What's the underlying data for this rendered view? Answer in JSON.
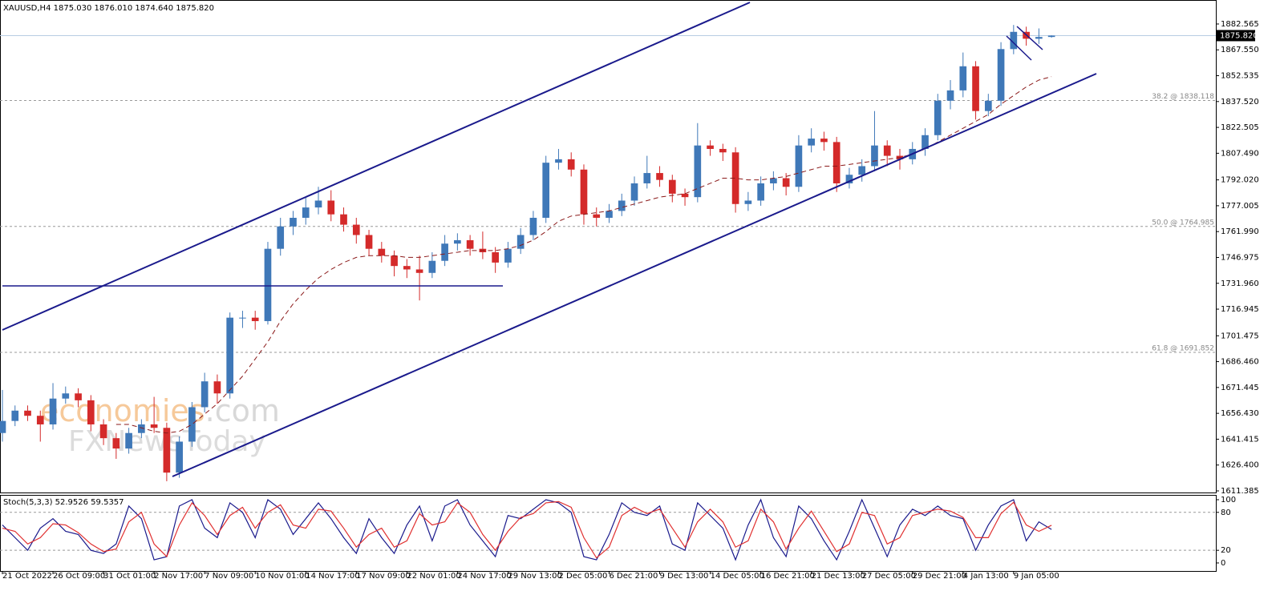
{
  "watermark": {
    "brand": "economies",
    "domain": ".com",
    "source": "FXNewsToday"
  },
  "chart_data": [
    {
      "type": "candlestick",
      "title": "XAUUSD,H4  1875.030 1876.010 1874.640 1875.820",
      "up_color": "#3f78b8",
      "down_color": "#d42a2a",
      "open": [
        1645,
        1652,
        1658,
        1655,
        1650,
        1665,
        1668,
        1664,
        1650,
        1642,
        1636,
        1645,
        1650,
        1648,
        1622,
        1640,
        1660,
        1675,
        1668,
        1712,
        1712,
        1710,
        1752,
        1765,
        1770,
        1776,
        1780,
        1772,
        1766,
        1760,
        1752,
        1748,
        1742,
        1740,
        1738,
        1745,
        1755,
        1757,
        1752,
        1750,
        1744,
        1752,
        1760,
        1770,
        1802,
        1804,
        1798,
        1772,
        1770,
        1774,
        1780,
        1790,
        1796,
        1792,
        1784,
        1782,
        1812,
        1810,
        1808,
        1778,
        1780,
        1790,
        1793,
        1788,
        1812,
        1816,
        1814,
        1790,
        1795,
        1800,
        1812,
        1806,
        1804,
        1810,
        1818,
        1838,
        1844,
        1858,
        1832,
        1838,
        1868,
        1878,
        1874,
        1875.03
      ],
      "high": [
        1670,
        1661,
        1661,
        1658,
        1674,
        1672,
        1671,
        1667,
        1653,
        1645,
        1648,
        1653,
        1666,
        1651,
        1643,
        1663,
        1680,
        1679,
        1715,
        1716,
        1716,
        1756,
        1770,
        1774,
        1782,
        1788,
        1786,
        1776,
        1770,
        1763,
        1756,
        1751,
        1746,
        1748,
        1750,
        1760,
        1761,
        1760,
        1762,
        1753,
        1756,
        1764,
        1774,
        1806,
        1810,
        1808,
        1801,
        1776,
        1778,
        1784,
        1794,
        1806,
        1800,
        1795,
        1787,
        1825,
        1815,
        1813,
        1811,
        1785,
        1794,
        1797,
        1796,
        1818,
        1822,
        1820,
        1817,
        1799,
        1804,
        1832,
        1815,
        1810,
        1814,
        1822,
        1842,
        1850,
        1866,
        1861,
        1842,
        1872,
        1882,
        1881,
        1880,
        1876.01
      ],
      "low": [
        1640,
        1649,
        1652,
        1640,
        1647,
        1662,
        1660,
        1646,
        1638,
        1630,
        1633,
        1642,
        1645,
        1617,
        1619,
        1637,
        1657,
        1662,
        1665,
        1706,
        1705,
        1708,
        1748,
        1760,
        1766,
        1772,
        1768,
        1762,
        1755,
        1748,
        1744,
        1736,
        1735,
        1722,
        1735,
        1742,
        1751,
        1748,
        1746,
        1738,
        1741,
        1749,
        1757,
        1767,
        1798,
        1794,
        1766,
        1765,
        1767,
        1771,
        1777,
        1787,
        1788,
        1779,
        1777,
        1779,
        1806,
        1803,
        1773,
        1774,
        1777,
        1786,
        1783,
        1785,
        1808,
        1809,
        1785,
        1787,
        1791,
        1797,
        1800,
        1798,
        1801,
        1806,
        1815,
        1833,
        1840,
        1827,
        1829,
        1835,
        1865,
        1870,
        1871,
        1874.64
      ],
      "close": [
        1652,
        1658,
        1655,
        1650,
        1665,
        1668,
        1664,
        1650,
        1642,
        1636,
        1645,
        1650,
        1648,
        1622,
        1640,
        1660,
        1675,
        1668,
        1712,
        1712,
        1710,
        1752,
        1765,
        1770,
        1776,
        1780,
        1772,
        1766,
        1760,
        1752,
        1748,
        1742,
        1740,
        1738,
        1745,
        1755,
        1757,
        1752,
        1750,
        1744,
        1752,
        1760,
        1770,
        1802,
        1804,
        1798,
        1772,
        1770,
        1774,
        1780,
        1790,
        1796,
        1792,
        1784,
        1782,
        1812,
        1810,
        1808,
        1778,
        1780,
        1790,
        1793,
        1788,
        1812,
        1816,
        1814,
        1790,
        1795,
        1800,
        1812,
        1806,
        1804,
        1810,
        1818,
        1838,
        1844,
        1858,
        1832,
        1838,
        1868,
        1878,
        1874,
        1875.03,
        1875.82
      ],
      "ma": {
        "color": "#8b1a1a",
        "values": [
          null,
          null,
          null,
          null,
          null,
          null,
          null,
          null,
          null,
          1650,
          1650,
          1648,
          1646,
          1645,
          1646,
          1650,
          1656,
          1662,
          1670,
          1678,
          1688,
          1698,
          1710,
          1720,
          1728,
          1735,
          1740,
          1744,
          1747,
          1748,
          1748,
          1748,
          1747,
          1747,
          1748,
          1749,
          1750,
          1751,
          1751,
          1751,
          1752,
          1754,
          1757,
          1762,
          1768,
          1771,
          1772,
          1773,
          1774,
          1776,
          1778,
          1780,
          1782,
          1783,
          1784,
          1787,
          1790,
          1793,
          1793,
          1792,
          1792,
          1793,
          1794,
          1796,
          1798,
          1800,
          1800,
          1801,
          1802,
          1803,
          1804,
          1805,
          1807,
          1810,
          1814,
          1818,
          1822,
          1826,
          1830,
          1836,
          1841,
          1846,
          1850,
          1852
        ]
      },
      "ylim": [
        1610.45,
        1896.5
      ],
      "yticks": [
        1882.565,
        {
          "value": 1867.55,
          "label": "1867.550"
        },
        1852.535,
        {
          "value": 1837.52,
          "label": "1837.520"
        },
        1822.505,
        {
          "value": 1807.49,
          "label": "1807.490"
        },
        {
          "value": 1792.02,
          "label": "1792.020"
        },
        1777.005,
        {
          "value": 1761.99,
          "label": "1761.990"
        },
        1746.975,
        {
          "value": 1731.96,
          "label": "1731.960"
        },
        1716.945,
        1701.475,
        {
          "value": 1686.46,
          "label": "1686.460"
        },
        1671.445,
        {
          "value": 1656.43,
          "label": "1656.430"
        },
        1641.415,
        {
          "value": 1626.4,
          "label": "1626.400"
        },
        1611.385
      ],
      "fib_levels": [
        {
          "value": 1838.118,
          "label": "38.2 @ 1838.118"
        },
        {
          "value": 1764.985,
          "label": "50.0 @ 1764.985"
        },
        {
          "value": 1691.852,
          "label": "61.8 @ 1691.852"
        }
      ],
      "price_label": {
        "value": 1875.82,
        "label": "1875.820"
      },
      "xlim": [
        -0.19,
        96
      ],
      "xticks": [
        {
          "value": 0,
          "label": "21 Oct 2022"
        },
        {
          "value": 4,
          "label": "26 Oct 09:00"
        },
        {
          "value": 8,
          "label": "31 Oct 01:00"
        },
        {
          "value": 12,
          "label": "2 Nov 17:00"
        },
        {
          "value": 16,
          "label": "7 Nov 09:00"
        },
        {
          "value": 20,
          "label": "10 Nov 01:00"
        },
        {
          "value": 24,
          "label": "14 Nov 17:00"
        },
        {
          "value": 28,
          "label": "17 Nov 09:00"
        },
        {
          "value": 32,
          "label": "22 Nov 01:00"
        },
        {
          "value": 36,
          "label": "24 Nov 17:00"
        },
        {
          "value": 40,
          "label": "29 Nov 13:00"
        },
        {
          "value": 44,
          "label": "2 Dec 05:00"
        },
        {
          "value": 48,
          "label": "6 Dec 21:00"
        },
        {
          "value": 52,
          "label": "9 Dec 13:00"
        },
        {
          "value": 56,
          "label": "14 Dec 05:00"
        },
        {
          "value": 60,
          "label": "16 Dec 21:00"
        },
        {
          "value": 64,
          "label": "21 Dec 13:00"
        },
        {
          "value": 68,
          "label": "27 Dec 05:00"
        },
        {
          "value": 72,
          "label": "29 Dec 21:00"
        },
        {
          "value": 76,
          "label": "4 Jan 13:00"
        },
        {
          "value": 80,
          "label": "9 Jan 05:00"
        }
      ]
    },
    {
      "type": "line",
      "title": "Stoch(5,3,3) 52.9526 59.5357",
      "series": [
        {
          "color": "#1a1a8c",
          "values": [
            60,
            40,
            20,
            55,
            70,
            50,
            45,
            20,
            15,
            30,
            90,
            70,
            5,
            10,
            90,
            100,
            55,
            40,
            95,
            80,
            40,
            100,
            85,
            45,
            70,
            95,
            70,
            40,
            15,
            70,
            40,
            15,
            60,
            90,
            35,
            90,
            100,
            60,
            35,
            10,
            75,
            70,
            85,
            100,
            95,
            80,
            10,
            5,
            45,
            95,
            80,
            75,
            90,
            30,
            20,
            95,
            75,
            55,
            5,
            60,
            100,
            40,
            10,
            90,
            70,
            35,
            5,
            50,
            100,
            55,
            10,
            60,
            85,
            75,
            90,
            75,
            70,
            20,
            60,
            90,
            100,
            35,
            65,
            52.9526
          ]
        },
        {
          "color": "#e03030",
          "values": [
            55,
            50,
            30,
            40,
            62,
            60,
            48,
            30,
            18,
            22,
            65,
            80,
            30,
            10,
            60,
            95,
            75,
            45,
            75,
            88,
            55,
            80,
            92,
            60,
            55,
            85,
            82,
            55,
            25,
            45,
            55,
            25,
            35,
            78,
            60,
            65,
            95,
            80,
            45,
            20,
            50,
            72,
            78,
            95,
            97,
            88,
            40,
            8,
            25,
            75,
            88,
            78,
            85,
            55,
            25,
            65,
            85,
            65,
            25,
            35,
            85,
            65,
            22,
            55,
            82,
            50,
            18,
            30,
            80,
            75,
            30,
            40,
            75,
            80,
            85,
            82,
            72,
            40,
            40,
            78,
            96,
            60,
            50,
            59.5357
          ]
        }
      ],
      "ylim": [
        -12.7,
        107.6
      ],
      "yticks": [
        100,
        80,
        20,
        0
      ],
      "levels": [
        80,
        20
      ]
    }
  ]
}
